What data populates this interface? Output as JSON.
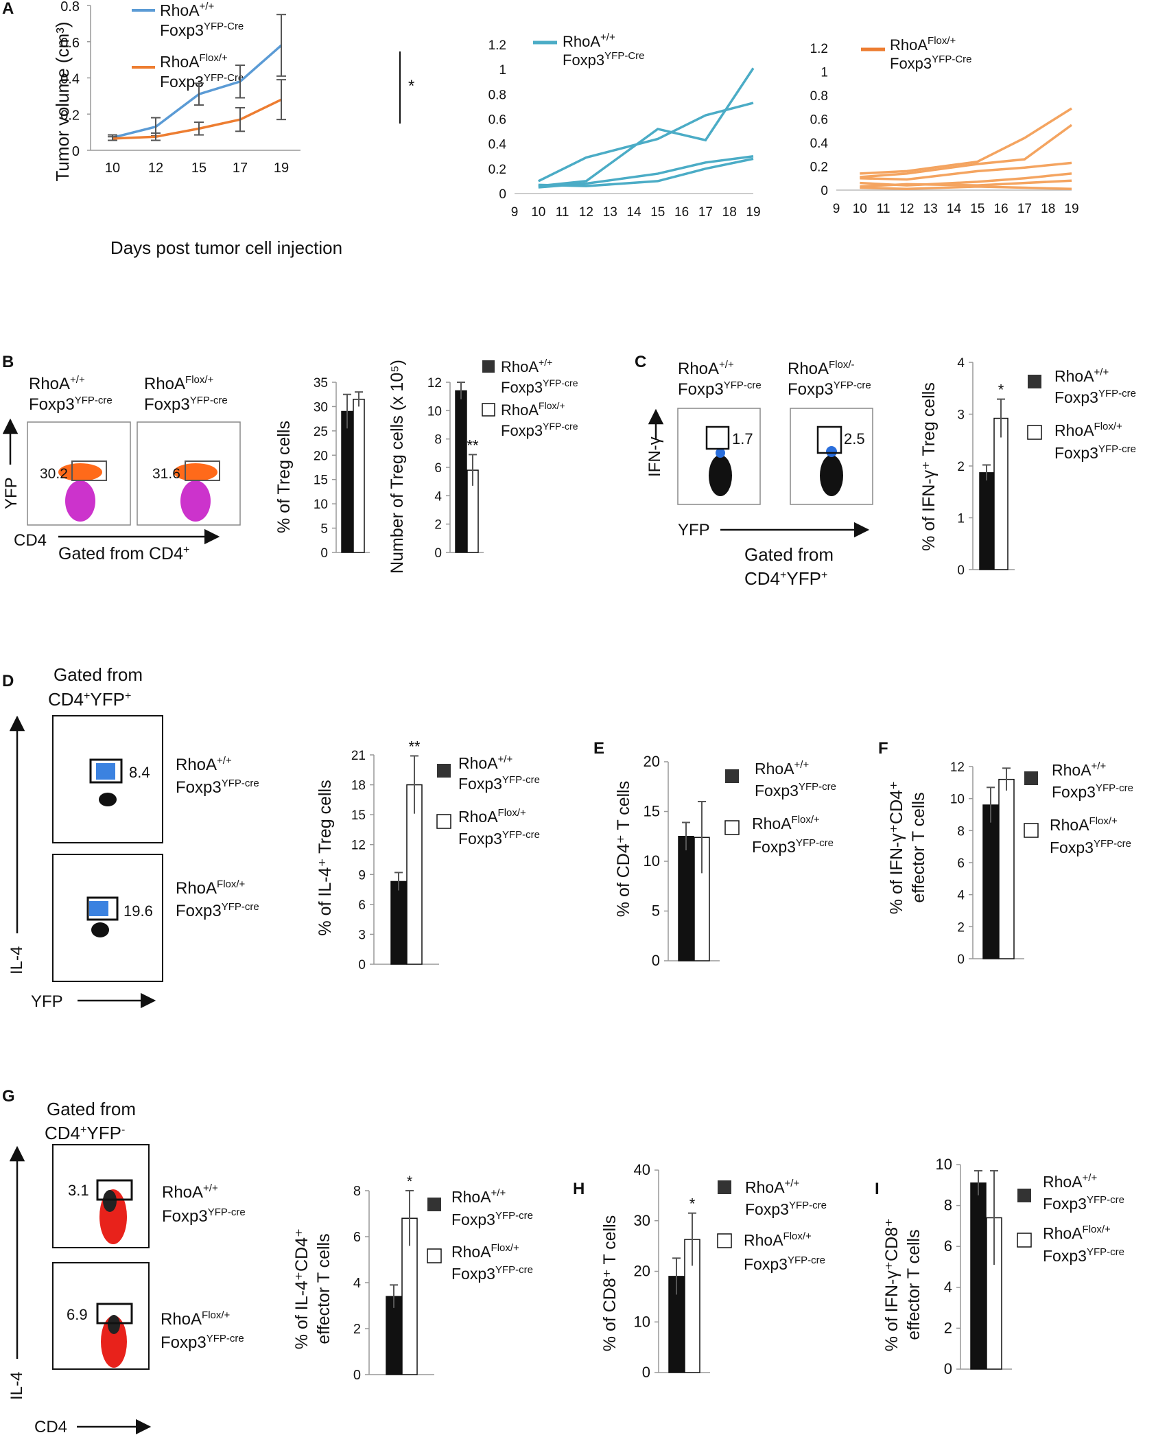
{
  "colors": {
    "blue": "#5b9bd5",
    "orange": "#ed7d31",
    "teal": "#4bacc6",
    "light_orange": "#f4a460",
    "black": "#111111"
  },
  "panel_labels": {
    "A": "A",
    "B": "B",
    "C": "C",
    "D": "D",
    "E": "E",
    "F": "F",
    "G": "G",
    "H": "H",
    "I": "I"
  },
  "sub": {
    "cre_upper": "YFP-Cre",
    "cre_lower": "YFP-cre",
    "wt": "+/+",
    "flox": "Flox/+",
    "flox_minus": "Flox/-",
    "plus": "+",
    "minus": "-"
  },
  "text": {
    "rhoa": "RhoA",
    "foxp3": "Foxp3",
    "gated_from": "Gated from",
    "gated_from_cd4": "Gated from CD4",
    "cd4": "CD4",
    "yfp": "YFP",
    "cd4_yfp": "CD4",
    "ifng": "IFN-γ",
    "il4": "IL-4"
  },
  "flow": {
    "B": {
      "wt": "30.2",
      "flox": "31.6"
    },
    "C": {
      "wt": "1.7",
      "flox": "2.5"
    },
    "D": {
      "wt": "8.4",
      "flox": "19.6"
    },
    "G": {
      "wt": "3.1",
      "flox": "6.9"
    }
  },
  "chart_data": [
    {
      "id": "A_mean",
      "type": "line",
      "title": "",
      "xlabel": "Days post tumor cell injection",
      "ylabel": "Tumor volume (cm³)",
      "categories": [
        "10",
        "12",
        "15",
        "17",
        "19"
      ],
      "yticks": [
        "0",
        "0.2",
        "0.4",
        "0.6",
        "0.8"
      ],
      "ylim": [
        0,
        0.8
      ],
      "series": [
        {
          "name": "RhoA+/+ Foxp3YFP-Cre",
          "values": [
            0.07,
            0.13,
            0.31,
            0.38,
            0.58
          ],
          "err": [
            0.015,
            0.05,
            0.06,
            0.09,
            0.17
          ]
        },
        {
          "name": "RhoAFlox/+ Foxp3YFP-Cre",
          "values": [
            0.065,
            0.075,
            0.12,
            0.17,
            0.28
          ],
          "err": [
            0.01,
            0.02,
            0.035,
            0.065,
            0.11
          ]
        }
      ],
      "annotation": "*"
    },
    {
      "id": "A_wt",
      "type": "line",
      "legend": "RhoA+/+ Foxp3YFP-Cre",
      "xticks": [
        "9",
        "10",
        "11",
        "12",
        "13",
        "14",
        "15",
        "16",
        "17",
        "18",
        "19"
      ],
      "yticks": [
        "0",
        "0.2",
        "0.4",
        "0.6",
        "0.8",
        "1",
        "1.2"
      ],
      "ylim": [
        0,
        1.2
      ],
      "series": [
        {
          "x": [
            10,
            12,
            15,
            17,
            19
          ],
          "values": [
            0.1,
            0.29,
            0.44,
            0.63,
            0.73
          ]
        },
        {
          "x": [
            10,
            12,
            15,
            17,
            19
          ],
          "values": [
            0.06,
            0.1,
            0.52,
            0.43,
            1.01
          ]
        },
        {
          "x": [
            10,
            12,
            15,
            17,
            19
          ],
          "values": [
            0.05,
            0.08,
            0.16,
            0.25,
            0.3
          ]
        },
        {
          "x": [
            10,
            12,
            15,
            17,
            19
          ],
          "values": [
            0.07,
            0.06,
            0.1,
            0.2,
            0.28
          ]
        }
      ]
    },
    {
      "id": "A_flox",
      "type": "line",
      "legend": "RhoAFlox/+ Foxp3YFP-Cre",
      "xticks": [
        "9",
        "10",
        "11",
        "12",
        "13",
        "14",
        "15",
        "16",
        "17",
        "18",
        "19"
      ],
      "yticks": [
        "0",
        "0.2",
        "0.4",
        "0.6",
        "0.8",
        "1",
        "1.2"
      ],
      "ylim": [
        0,
        1.2
      ],
      "series": [
        {
          "x": [
            10,
            12,
            15,
            17,
            19
          ],
          "values": [
            0.14,
            0.16,
            0.24,
            0.44,
            0.69
          ]
        },
        {
          "x": [
            10,
            12,
            15,
            17,
            19
          ],
          "values": [
            0.11,
            0.14,
            0.22,
            0.26,
            0.55
          ]
        },
        {
          "x": [
            10,
            12,
            15,
            17,
            19
          ],
          "values": [
            0.1,
            0.09,
            0.16,
            0.19,
            0.23
          ]
        },
        {
          "x": [
            10,
            12,
            15,
            17,
            19
          ],
          "values": [
            0.06,
            0.04,
            0.07,
            0.1,
            0.14
          ]
        },
        {
          "x": [
            10,
            12,
            15,
            17,
            19
          ],
          "values": [
            0.03,
            0.05,
            0.04,
            0.06,
            0.08
          ]
        },
        {
          "x": [
            10,
            12,
            15,
            17,
            19
          ],
          "values": [
            0.02,
            0.01,
            0.03,
            0.02,
            0.01
          ]
        }
      ]
    },
    {
      "id": "B1",
      "type": "bar",
      "ylabel": "% of Treg cells",
      "ylim": [
        0,
        35
      ],
      "yticks": [
        "0",
        "5",
        "10",
        "15",
        "20",
        "25",
        "30",
        "35"
      ],
      "values": [
        29,
        31.5
      ],
      "err": [
        3.5,
        1.5
      ],
      "sig": [
        "",
        ""
      ]
    },
    {
      "id": "B2",
      "type": "bar",
      "ylabel": "Number of Treg cells (x 10⁵)",
      "ylim": [
        0,
        12
      ],
      "yticks": [
        "0",
        "2",
        "4",
        "6",
        "8",
        "10",
        "12"
      ],
      "values": [
        11.4,
        5.8
      ],
      "err": [
        0.6,
        1.1
      ],
      "sig": [
        "",
        "**"
      ]
    },
    {
      "id": "C",
      "type": "bar",
      "ylabel": "% of IFN-γ⁺ Treg cells",
      "ylim": [
        0,
        4
      ],
      "yticks": [
        "0",
        "1",
        "2",
        "3",
        "4"
      ],
      "values": [
        1.87,
        2.92
      ],
      "err": [
        0.15,
        0.37
      ],
      "sig": [
        "",
        "*"
      ]
    },
    {
      "id": "D",
      "type": "bar",
      "ylabel": "% of IL-4⁺ Treg cells",
      "ylim": [
        0,
        21
      ],
      "yticks": [
        "0",
        "3",
        "6",
        "9",
        "12",
        "15",
        "18",
        "21"
      ],
      "values": [
        8.3,
        18
      ],
      "err": [
        0.9,
        2.9
      ],
      "sig": [
        "",
        "**"
      ]
    },
    {
      "id": "E",
      "type": "bar",
      "ylabel": "% of CD4⁺ T cells",
      "ylim": [
        0,
        20
      ],
      "yticks": [
        "0",
        "5",
        "10",
        "15",
        "20"
      ],
      "values": [
        12.5,
        12.4
      ],
      "err": [
        1.4,
        3.6
      ],
      "sig": [
        "",
        ""
      ]
    },
    {
      "id": "F",
      "type": "bar",
      "ylabel": "% of IFN-γ⁺CD4⁺ effector T cells",
      "ylim": [
        0,
        12
      ],
      "yticks": [
        "0",
        "2",
        "4",
        "6",
        "8",
        "10",
        "12"
      ],
      "values": [
        9.6,
        11.2
      ],
      "err": [
        1.1,
        0.7
      ],
      "sig": [
        "",
        ""
      ]
    },
    {
      "id": "G",
      "type": "bar",
      "ylabel": "% of IL-4⁺CD4⁺ effector T cells",
      "ylim": [
        0,
        8
      ],
      "yticks": [
        "0",
        "2",
        "4",
        "6",
        "8"
      ],
      "values": [
        3.4,
        6.8
      ],
      "err": [
        0.5,
        1.2
      ],
      "sig": [
        "",
        "*"
      ]
    },
    {
      "id": "H",
      "type": "bar",
      "ylabel": "% of CD8⁺ T cells",
      "ylim": [
        0,
        40
      ],
      "yticks": [
        "0",
        "10",
        "20",
        "30",
        "40"
      ],
      "values": [
        19,
        26.3
      ],
      "err": [
        3.6,
        5.2
      ],
      "sig": [
        "",
        "*"
      ]
    },
    {
      "id": "I",
      "type": "bar",
      "ylabel": "% of IFN-γ⁺CD8⁺ effector T cells",
      "ylim": [
        0,
        10
      ],
      "yticks": [
        "0",
        "2",
        "4",
        "6",
        "8",
        "10"
      ],
      "values": [
        9.1,
        7.4
      ],
      "err": [
        0.6,
        2.3
      ],
      "sig": [
        "",
        ""
      ]
    }
  ]
}
